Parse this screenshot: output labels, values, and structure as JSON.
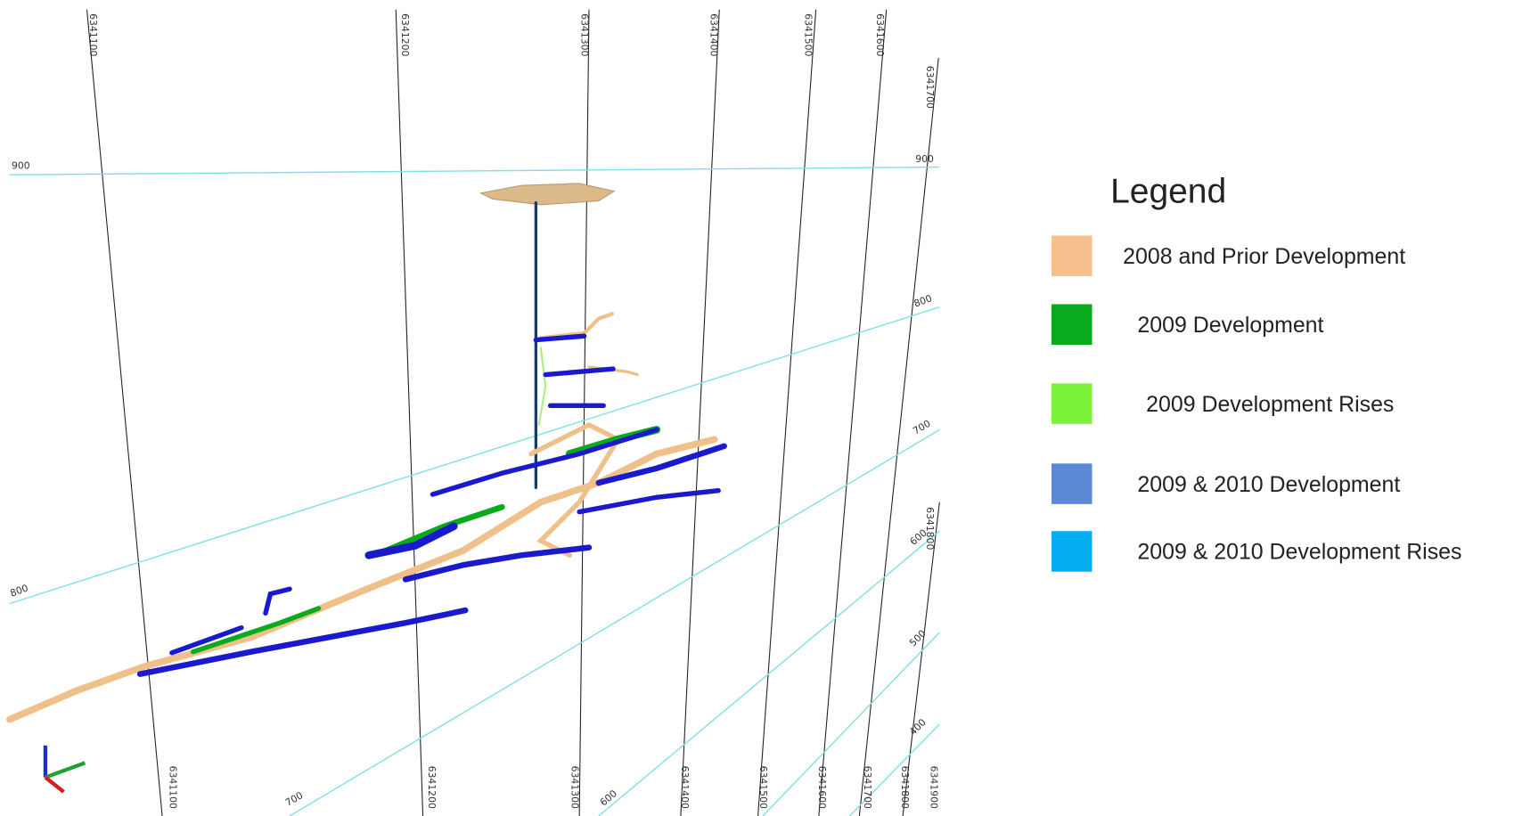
{
  "grid": {
    "northing_top": [
      "6341100",
      "6341200",
      "6341300",
      "6341400",
      "6341500",
      "6341600",
      "6341700"
    ],
    "northing_bottom": [
      "6341100",
      "6341200",
      "6341300",
      "6341400",
      "6341500",
      "6341600",
      "6341700",
      "6341800",
      "6341900",
      "6341800"
    ],
    "elevation_left": [
      "900",
      "800",
      "700",
      "600"
    ],
    "elevation_right": [
      "900",
      "800",
      "700",
      "600",
      "500",
      "400"
    ]
  },
  "legend": {
    "title": "Legend",
    "items": [
      {
        "label": "2008 and Prior Development",
        "color": "#f6bf8e"
      },
      {
        "label": "2009 Development",
        "color": "#0aaa1e"
      },
      {
        "label": "2009 Development Rises",
        "color": "#7cf23a"
      },
      {
        "label": "2009 & 2010 Development",
        "color": "#5a8ad6"
      },
      {
        "label": "2009 & 2010 Development Rises",
        "color": "#04aef0"
      }
    ]
  }
}
